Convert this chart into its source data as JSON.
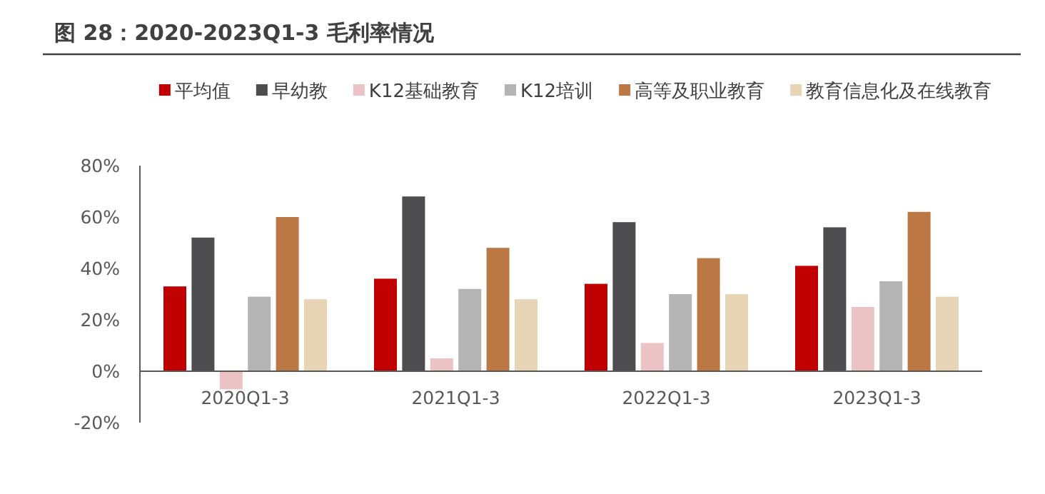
{
  "chart_data": {
    "type": "bar",
    "title": "图 28：2020-2023Q1-3 毛利率情况",
    "categories": [
      "2020Q1-3",
      "2021Q1-3",
      "2022Q1-3",
      "2023Q1-3"
    ],
    "series": [
      {
        "name": "平均值",
        "color": "#c00000",
        "values": [
          33,
          36,
          34,
          41
        ]
      },
      {
        "name": "早幼教",
        "color": "#4d4d4f",
        "values": [
          52,
          68,
          58,
          56
        ]
      },
      {
        "name": "K12基础教育",
        "color": "#ebc3c4",
        "values": [
          -7,
          5,
          11,
          25
        ]
      },
      {
        "name": "K12培训",
        "color": "#b4b4b4",
        "values": [
          29,
          32,
          30,
          35
        ]
      },
      {
        "name": "高等及职业教育",
        "color": "#bb7844",
        "values": [
          60,
          48,
          44,
          62
        ]
      },
      {
        "name": "教育信息化及在线教育",
        "color": "#e8d5b5",
        "values": [
          28,
          28,
          30,
          29
        ]
      }
    ],
    "ylim": [
      -20,
      80
    ],
    "yticks": [
      {
        "value": -20,
        "label": "-20%"
      },
      {
        "value": 0,
        "label": "0%"
      },
      {
        "value": 20,
        "label": "20%"
      },
      {
        "value": 40,
        "label": "40%"
      },
      {
        "value": 60,
        "label": "60%"
      },
      {
        "value": 80,
        "label": "80%"
      }
    ],
    "grid": false,
    "legend": "top"
  }
}
